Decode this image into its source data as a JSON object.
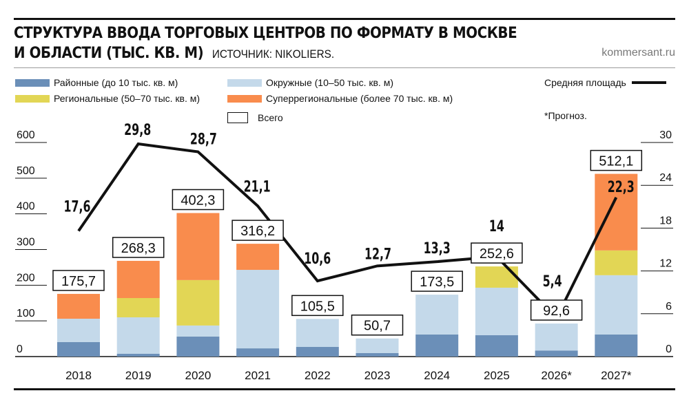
{
  "header": {
    "title_line1": "СТРУКТУРА ВВОДА ТОРГОВЫХ ЦЕНТРОВ ПО ФОРМАТУ В МОСКВЕ",
    "title_line2": "И ОБЛАСТИ (ТЫС. КВ. М)",
    "source": "ИСТОЧНИК: NIKOLIERS.",
    "site": "kommersant.ru"
  },
  "legend": {
    "district": "Районные (до 10 тыс. кв. м)",
    "okr": "Окружные (10–50 тыс. кв. м)",
    "regional": "Региональные (50–70 тыс. кв. м)",
    "super": "Суперрегиональные (более 70 тыс. кв. м)",
    "total": "Всего",
    "avg": "Средняя площадь",
    "note": "*Прогноз."
  },
  "chart_data": {
    "type": "bar",
    "stacked": true,
    "categories": [
      "2018",
      "2019",
      "2020",
      "2021",
      "2022",
      "2023",
      "2024",
      "2025",
      "2026*",
      "2027*"
    ],
    "series": [
      {
        "name": "Районные (до 10 тыс. кв. м)",
        "color": "#6b8fb8",
        "values": [
          40.5,
          7.7,
          56,
          23,
          27,
          10,
          62,
          60,
          17,
          62
        ]
      },
      {
        "name": "Окружные (10–50 тыс. кв. м)",
        "color": "#c4d9ea",
        "values": [
          65.6,
          102.3,
          31,
          220,
          78.5,
          40.7,
          111.5,
          133,
          75.6,
          166
        ]
      },
      {
        "name": "Региональные (50–70 тыс. кв. м)",
        "color": "#e2d655",
        "values": [
          0,
          54,
          127.4,
          0,
          0,
          0,
          0,
          59.6,
          0,
          69.5
        ]
      },
      {
        "name": "Суперрегиональные (более 70 тыс. кв. м)",
        "color": "#f98c4d",
        "values": [
          69.6,
          104.3,
          187.9,
          73.2,
          0,
          0,
          0,
          0,
          0,
          214.6
        ]
      }
    ],
    "totals": {
      "name": "Всего",
      "values": [
        "175,7",
        "268,3",
        "402,3",
        "316,2",
        "105,5",
        "50,7",
        "173,5",
        "252,6",
        "92,6",
        "512,1"
      ]
    },
    "line": {
      "name": "Средняя площадь",
      "values": [
        17.6,
        29.8,
        28.7,
        21.1,
        10.6,
        12.7,
        13.3,
        14,
        5.4,
        22.3
      ],
      "labels": [
        "17,6",
        "29,8",
        "28,7",
        "21,1",
        "10,6",
        "12,7",
        "13,3",
        "14",
        "5,4",
        "22,3"
      ],
      "axis": "right"
    },
    "y_left": {
      "ylim": [
        0,
        600
      ],
      "ticks": [
        "0",
        "100",
        "200",
        "300",
        "400",
        "500",
        "600"
      ]
    },
    "y_right": {
      "ylim": [
        0,
        30
      ],
      "ticks": [
        "0",
        "6",
        "12",
        "18",
        "24",
        "30"
      ]
    },
    "grid": false
  }
}
